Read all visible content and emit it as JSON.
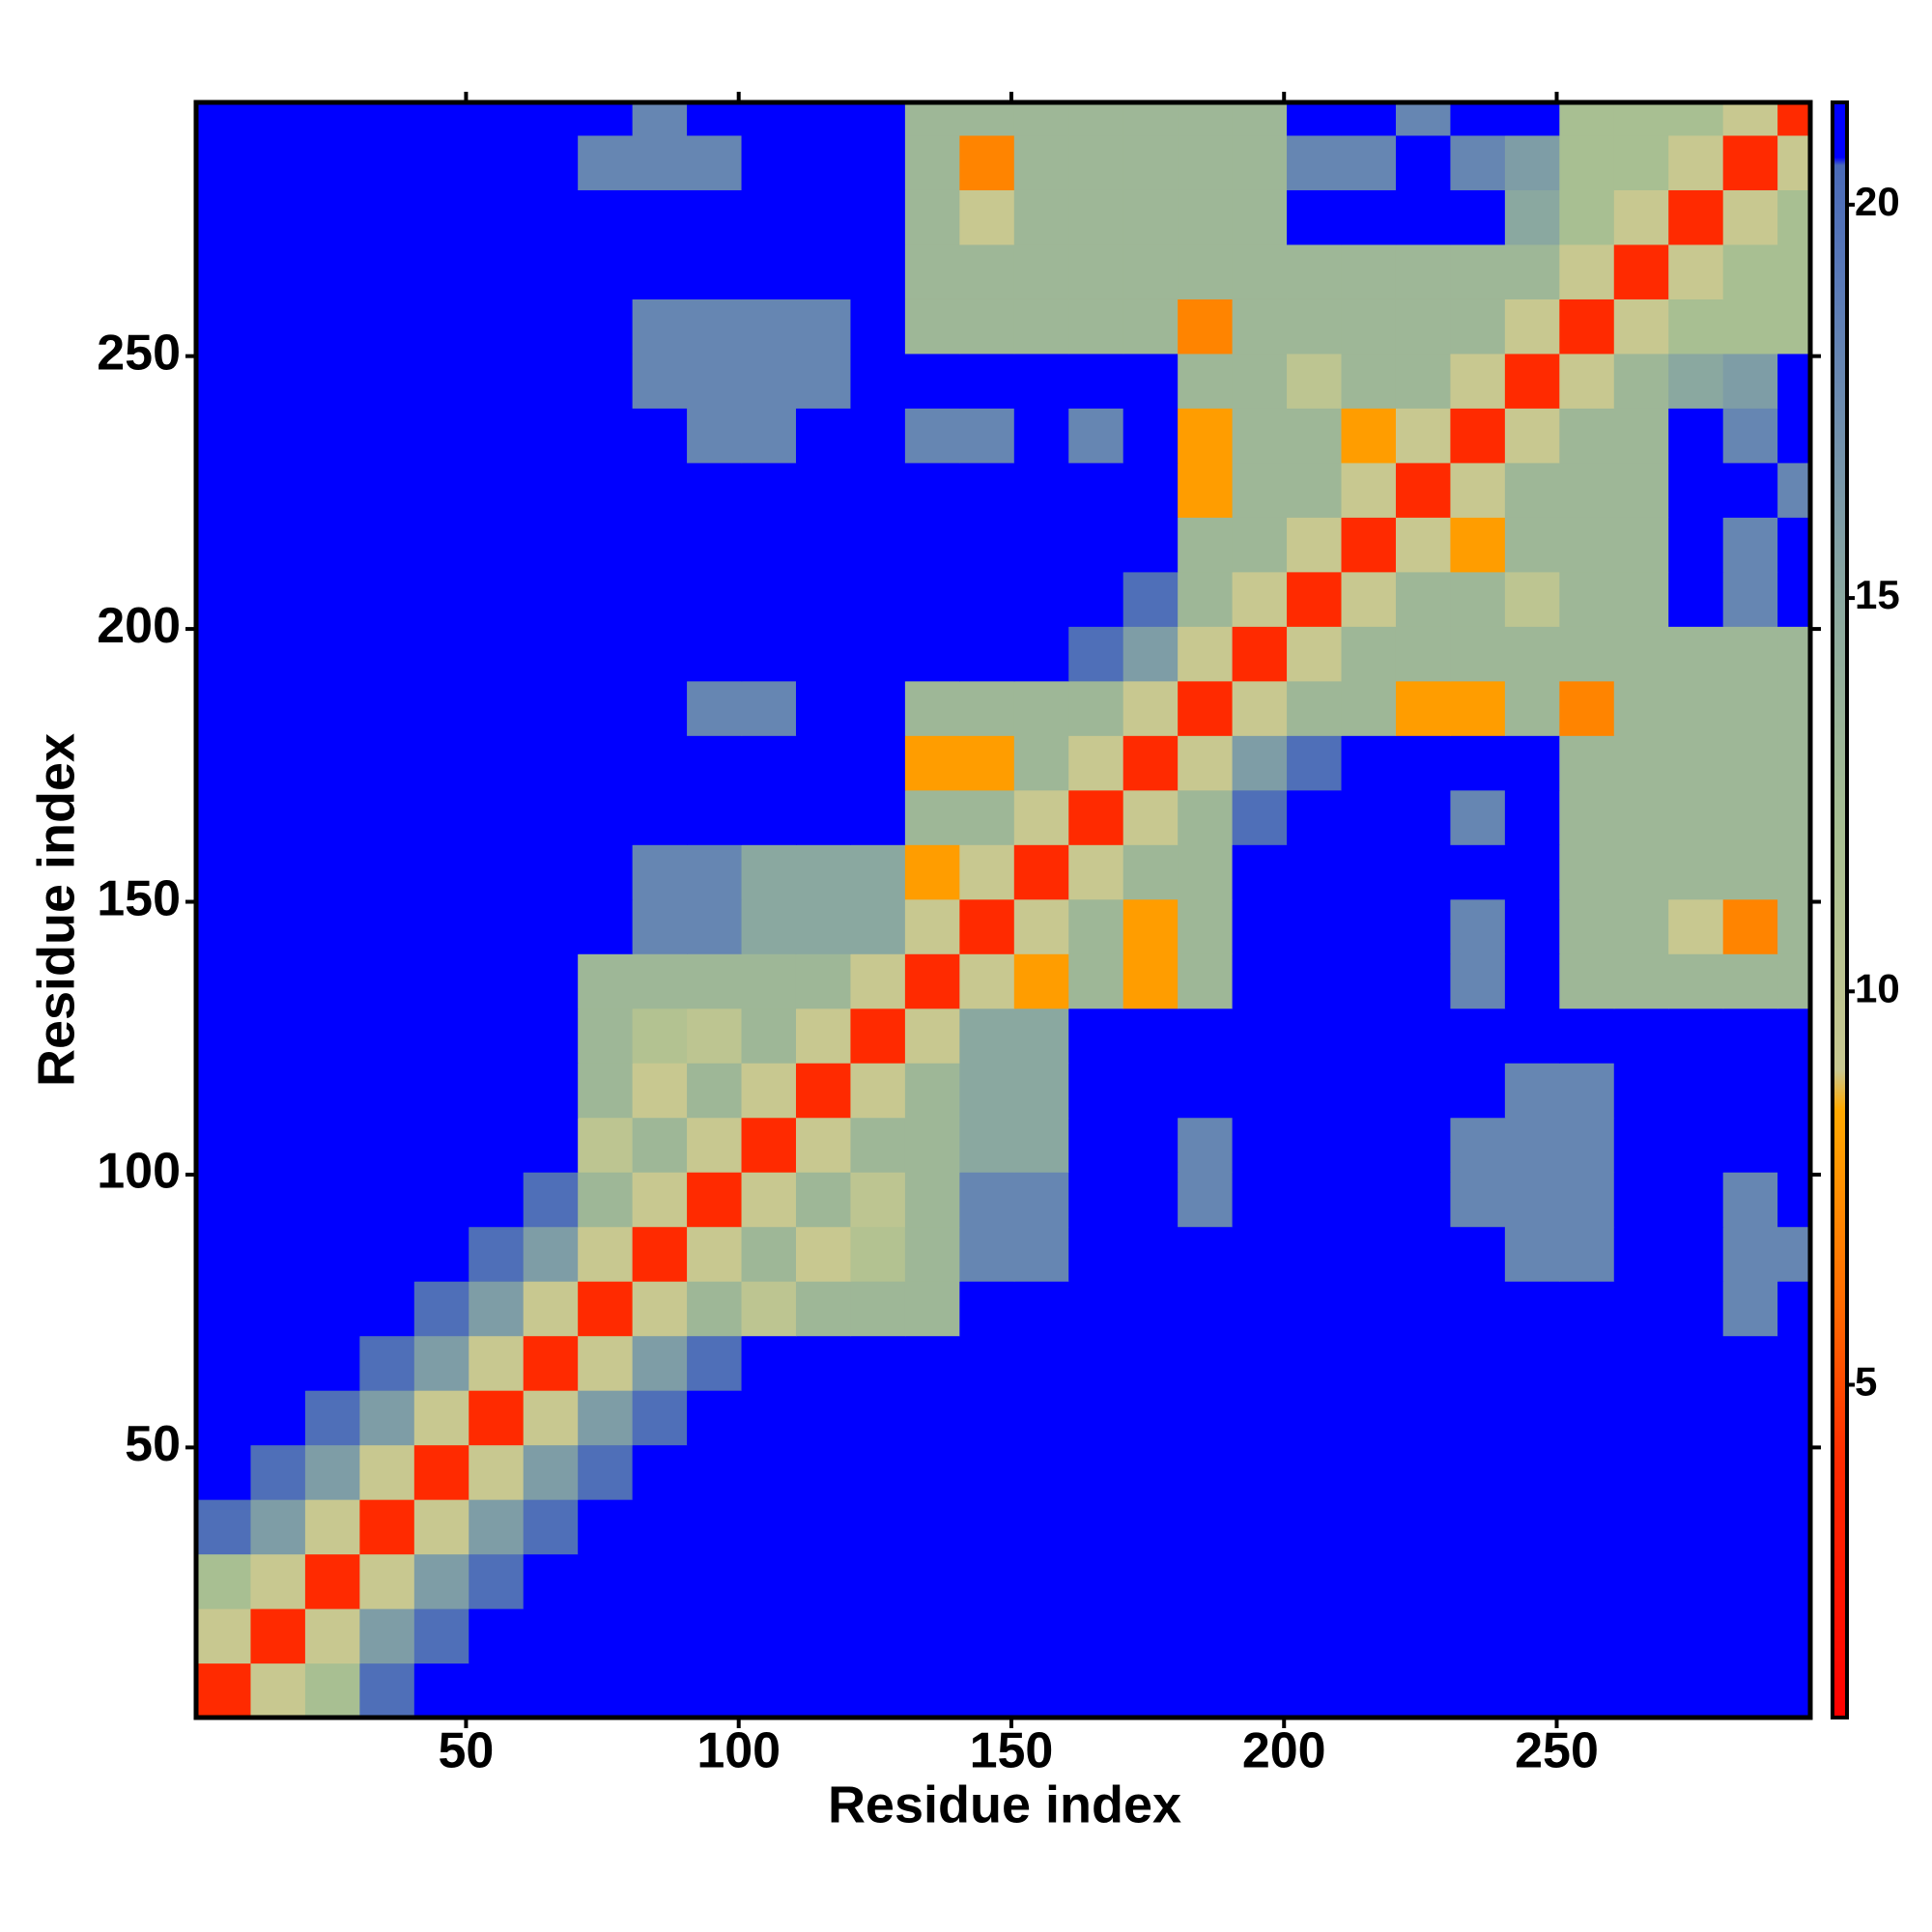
{
  "chart_data": {
    "type": "heatmap",
    "xlabel": "Residue index",
    "ylabel": "Residue index",
    "edges": [
      0.5,
      10.5,
      20.5,
      30.5,
      40.5,
      50.5,
      60.5,
      70.5,
      80.5,
      90.5,
      100.5,
      110.5,
      120.5,
      130.5,
      140.5,
      150.5,
      160.5,
      170.5,
      180.5,
      190.5,
      200.5,
      210.5,
      220.5,
      230.5,
      240.5,
      250.5,
      260.5,
      270.5,
      280.5,
      290.5,
      296.5
    ],
    "xlim": [
      0.5,
      296.5
    ],
    "ylim": [
      0.5,
      296.5
    ],
    "xticks": [
      50,
      100,
      150,
      200,
      250
    ],
    "yticks": [
      50,
      100,
      150,
      200,
      250
    ],
    "colorbar_lim": [
      0.77,
      21.3
    ],
    "colorbar_ticks": [
      5,
      10,
      15,
      20
    ],
    "colorscale": [
      [
        0.77,
        "#ff0000"
      ],
      [
        4,
        "#ff2a00"
      ],
      [
        6,
        "#ff6a00"
      ],
      [
        8.5,
        "#ffaa00"
      ],
      [
        9,
        "#c8c890"
      ],
      [
        12,
        "#a8bf92"
      ],
      [
        15,
        "#8aa8a0"
      ],
      [
        19,
        "#5a7ab8"
      ],
      [
        20.5,
        "#4a6ab8"
      ],
      [
        20.6,
        "#0000ff"
      ],
      [
        21.3,
        "#0000ff"
      ]
    ],
    "z": [
      [
        4,
        9,
        12,
        20,
        21,
        21,
        21,
        21,
        21,
        21,
        21,
        21,
        21,
        21,
        21,
        21,
        21,
        21,
        21,
        21,
        21,
        21,
        21,
        21,
        21,
        21,
        21,
        21,
        21,
        21
      ],
      [
        9,
        4,
        9,
        16,
        20,
        21,
        21,
        21,
        21,
        21,
        21,
        21,
        21,
        21,
        21,
        21,
        21,
        21,
        21,
        21,
        21,
        21,
        21,
        21,
        21,
        21,
        21,
        21,
        21,
        21
      ],
      [
        12,
        9,
        4,
        9,
        16,
        20,
        21,
        21,
        21,
        21,
        21,
        21,
        21,
        21,
        21,
        21,
        21,
        21,
        21,
        21,
        21,
        21,
        21,
        21,
        21,
        21,
        21,
        21,
        21,
        21
      ],
      [
        20,
        16,
        9,
        4,
        9,
        16,
        20,
        21,
        21,
        21,
        21,
        21,
        21,
        21,
        21,
        21,
        21,
        21,
        21,
        21,
        21,
        21,
        21,
        21,
        21,
        21,
        21,
        21,
        21,
        21
      ],
      [
        21,
        20,
        16,
        9,
        4,
        9,
        16,
        20,
        21,
        21,
        21,
        21,
        21,
        21,
        21,
        21,
        21,
        21,
        21,
        21,
        21,
        21,
        21,
        21,
        21,
        21,
        21,
        21,
        21,
        21
      ],
      [
        21,
        21,
        20,
        16,
        9,
        4,
        9,
        16,
        20,
        21,
        21,
        21,
        21,
        21,
        21,
        21,
        21,
        21,
        21,
        21,
        21,
        21,
        21,
        21,
        21,
        21,
        21,
        21,
        21,
        21
      ],
      [
        21,
        21,
        21,
        20,
        16,
        9,
        4,
        9,
        16,
        20,
        21,
        21,
        21,
        21,
        21,
        21,
        21,
        21,
        21,
        21,
        21,
        21,
        21,
        21,
        21,
        21,
        21,
        21,
        21,
        21
      ],
      [
        21,
        21,
        21,
        21,
        20,
        16,
        9,
        4,
        9,
        13,
        10,
        13,
        13,
        13,
        21,
        21,
        21,
        21,
        21,
        21,
        21,
        21,
        21,
        21,
        21,
        21,
        21,
        21,
        18,
        21
      ],
      [
        21,
        21,
        21,
        21,
        21,
        20,
        16,
        9,
        4,
        9,
        13,
        9,
        11,
        13,
        18,
        18,
        21,
        21,
        21,
        21,
        21,
        21,
        21,
        21,
        18,
        18,
        21,
        21,
        18,
        18
      ],
      [
        21,
        21,
        21,
        21,
        21,
        21,
        20,
        13,
        9,
        4,
        9,
        13,
        10,
        13,
        18,
        18,
        21,
        21,
        18,
        21,
        21,
        21,
        21,
        18,
        18,
        18,
        21,
        21,
        18,
        21
      ],
      [
        21,
        21,
        21,
        21,
        21,
        21,
        21,
        10,
        13,
        9,
        4,
        9,
        13,
        13,
        15,
        15,
        21,
        21,
        18,
        21,
        21,
        21,
        21,
        18,
        18,
        18,
        21,
        21,
        21,
        21
      ],
      [
        21,
        21,
        21,
        21,
        21,
        21,
        21,
        13,
        9,
        13,
        9,
        4,
        9,
        13,
        15,
        15,
        21,
        21,
        21,
        21,
        21,
        21,
        21,
        21,
        18,
        18,
        21,
        21,
        21,
        21
      ],
      [
        21,
        21,
        21,
        21,
        21,
        21,
        21,
        13,
        11,
        10,
        13,
        9,
        4,
        9,
        15,
        15,
        21,
        21,
        21,
        21,
        21,
        21,
        21,
        21,
        21,
        21,
        21,
        21,
        21,
        21
      ],
      [
        21,
        21,
        21,
        21,
        21,
        21,
        21,
        13,
        13,
        13,
        13,
        13,
        9,
        4,
        9,
        8,
        13,
        8,
        13,
        21,
        21,
        21,
        21,
        18,
        21,
        13,
        13,
        13,
        13,
        13
      ],
      [
        21,
        21,
        21,
        21,
        21,
        21,
        21,
        21,
        18,
        18,
        15,
        15,
        15,
        9,
        4,
        9,
        13,
        8,
        13,
        21,
        21,
        21,
        21,
        18,
        21,
        13,
        13,
        9,
        7,
        13
      ],
      [
        21,
        21,
        21,
        21,
        21,
        21,
        21,
        21,
        18,
        18,
        15,
        15,
        15,
        8,
        9,
        4,
        9,
        13,
        13,
        21,
        21,
        21,
        21,
        21,
        21,
        13,
        13,
        13,
        13,
        13
      ],
      [
        21,
        21,
        21,
        21,
        21,
        21,
        21,
        21,
        21,
        21,
        21,
        21,
        21,
        13,
        13,
        9,
        4,
        9,
        13,
        20,
        21,
        21,
        21,
        18,
        21,
        13,
        13,
        13,
        13,
        13
      ],
      [
        21,
        21,
        21,
        21,
        21,
        21,
        21,
        21,
        21,
        21,
        21,
        21,
        21,
        8,
        8,
        13,
        9,
        4,
        9,
        16,
        20,
        21,
        21,
        21,
        21,
        13,
        13,
        13,
        13,
        13
      ],
      [
        21,
        21,
        21,
        21,
        21,
        21,
        21,
        21,
        21,
        18,
        18,
        21,
        21,
        13,
        13,
        13,
        13,
        9,
        4,
        9,
        13,
        13,
        8,
        8,
        13,
        7,
        13,
        13,
        13,
        13
      ],
      [
        21,
        21,
        21,
        21,
        21,
        21,
        21,
        21,
        21,
        21,
        21,
        21,
        21,
        21,
        21,
        21,
        20,
        16,
        9,
        4,
        9,
        13,
        13,
        13,
        13,
        13,
        13,
        13,
        13,
        13
      ],
      [
        21,
        21,
        21,
        21,
        21,
        21,
        21,
        21,
        21,
        21,
        21,
        21,
        21,
        21,
        21,
        21,
        21,
        20,
        13,
        9,
        4,
        9,
        13,
        13,
        10,
        13,
        13,
        21,
        18,
        21
      ],
      [
        21,
        21,
        21,
        21,
        21,
        21,
        21,
        21,
        21,
        21,
        21,
        21,
        21,
        21,
        21,
        21,
        21,
        21,
        13,
        13,
        9,
        4,
        9,
        8,
        13,
        13,
        13,
        21,
        18,
        21
      ],
      [
        21,
        21,
        21,
        21,
        21,
        21,
        21,
        21,
        21,
        21,
        21,
        21,
        21,
        21,
        21,
        21,
        21,
        21,
        8,
        13,
        13,
        9,
        4,
        9,
        13,
        13,
        13,
        21,
        21,
        18
      ],
      [
        21,
        21,
        21,
        21,
        21,
        21,
        21,
        21,
        21,
        18,
        18,
        21,
        21,
        18,
        18,
        21,
        18,
        21,
        8,
        13,
        13,
        8,
        9,
        4,
        9,
        13,
        13,
        21,
        18,
        21
      ],
      [
        21,
        21,
        21,
        21,
        21,
        21,
        21,
        21,
        18,
        18,
        18,
        18,
        21,
        21,
        21,
        21,
        21,
        21,
        13,
        13,
        10,
        13,
        13,
        9,
        4,
        9,
        13,
        15,
        16,
        21
      ],
      [
        21,
        21,
        21,
        21,
        21,
        21,
        21,
        21,
        18,
        18,
        18,
        18,
        21,
        13,
        13,
        13,
        13,
        13,
        7,
        13,
        13,
        13,
        13,
        13,
        9,
        4,
        9,
        12,
        12,
        12
      ],
      [
        21,
        21,
        21,
        21,
        21,
        21,
        21,
        21,
        21,
        21,
        21,
        21,
        21,
        13,
        13,
        13,
        13,
        13,
        13,
        13,
        13,
        13,
        13,
        13,
        13,
        9,
        4,
        9,
        12,
        12
      ],
      [
        21,
        21,
        21,
        21,
        21,
        21,
        21,
        21,
        21,
        21,
        21,
        21,
        21,
        13,
        9,
        13,
        13,
        13,
        13,
        13,
        21,
        21,
        21,
        21,
        15,
        12,
        9,
        4,
        9,
        12
      ],
      [
        21,
        21,
        21,
        21,
        21,
        21,
        21,
        18,
        18,
        18,
        21,
        21,
        21,
        13,
        7,
        13,
        13,
        13,
        13,
        13,
        18,
        18,
        21,
        18,
        16,
        12,
        12,
        9,
        4,
        9
      ],
      [
        21,
        21,
        21,
        21,
        21,
        21,
        21,
        21,
        18,
        21,
        21,
        21,
        21,
        13,
        13,
        13,
        13,
        13,
        13,
        13,
        21,
        21,
        18,
        21,
        21,
        12,
        12,
        12,
        9,
        4
      ]
    ]
  }
}
